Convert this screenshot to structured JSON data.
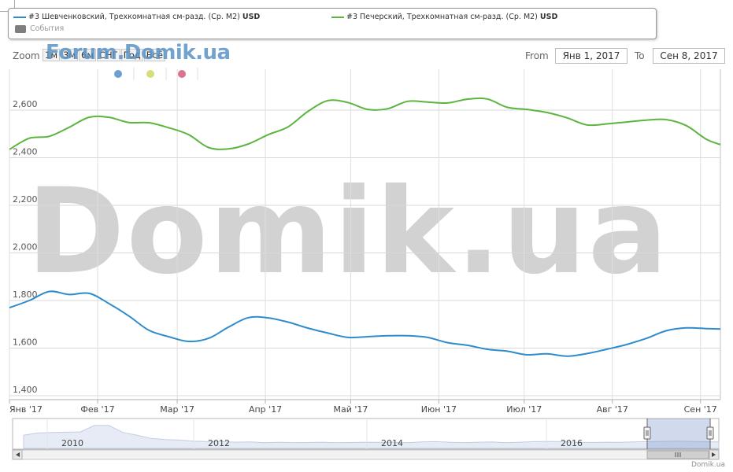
{
  "legend": {
    "series1": "#3 Шевченковский, Трехкомнатная см-разд. (Ср. М2)",
    "series2": "#3 Печерский, Трехкомнатная см-разд. (Ср. М2)",
    "currency": "USD",
    "events": "События"
  },
  "toolbar": {
    "zoom_label": "Zoom",
    "zoom_buttons": [
      "1м",
      "3м",
      "6м",
      "СНГ",
      "Год",
      "Всё"
    ],
    "from_label": "From",
    "from_value": "Янв 1, 2017",
    "to_label": "To",
    "to_value": "Сен 8, 2017"
  },
  "watermarks": {
    "small": "Forum.Domik.ua",
    "big": "Domik.ua"
  },
  "credit": "Domik.ua",
  "colors": {
    "series1": "#2e8bcc",
    "series2": "#5cb53e",
    "event_dots": [
      "#6d9fd0",
      "#d6dd7a",
      "#d9738f"
    ],
    "navigator_fill": "#e6ebf5"
  },
  "chart_data": {
    "type": "line",
    "x_unit": "date",
    "xlim": [
      "2017-01-01",
      "2017-09-08"
    ],
    "ylim": [
      1400,
      2600
    ],
    "yticks": [
      1400,
      1600,
      1800,
      2000,
      2200,
      2400,
      2600
    ],
    "ytick_labels": [
      "1,400",
      "1,600",
      "1,800",
      "2,000",
      "2,200",
      "2,400",
      "2,600"
    ],
    "xticks": [
      {
        "date": "2017-01-01",
        "label": "Янв '17"
      },
      {
        "date": "2017-02-01",
        "label": "Фев '17"
      },
      {
        "date": "2017-03-01",
        "label": "Мар '17"
      },
      {
        "date": "2017-04-01",
        "label": "Апр '17"
      },
      {
        "date": "2017-05-01",
        "label": "Май '17"
      },
      {
        "date": "2017-06-01",
        "label": "Июн '17"
      },
      {
        "date": "2017-07-01",
        "label": "Июл '17"
      },
      {
        "date": "2017-08-01",
        "label": "Авг '17"
      },
      {
        "date": "2017-09-01",
        "label": "Сен '17"
      }
    ],
    "grid": true,
    "series": [
      {
        "name": "#3 Печерский, Трехкомнатная см-разд. (Ср. М2)",
        "color": "#5cb53e",
        "points": [
          [
            "2017-01-01",
            2435
          ],
          [
            "2017-01-08",
            2482
          ],
          [
            "2017-01-15",
            2490
          ],
          [
            "2017-01-22",
            2528
          ],
          [
            "2017-01-29",
            2570
          ],
          [
            "2017-02-05",
            2570
          ],
          [
            "2017-02-12",
            2548
          ],
          [
            "2017-02-19",
            2547
          ],
          [
            "2017-02-26",
            2526
          ],
          [
            "2017-03-05",
            2497
          ],
          [
            "2017-03-12",
            2443
          ],
          [
            "2017-03-19",
            2437
          ],
          [
            "2017-03-26",
            2458
          ],
          [
            "2017-04-02",
            2497
          ],
          [
            "2017-04-09",
            2530
          ],
          [
            "2017-04-16",
            2595
          ],
          [
            "2017-04-23",
            2640
          ],
          [
            "2017-04-30",
            2632
          ],
          [
            "2017-05-07",
            2603
          ],
          [
            "2017-05-14",
            2606
          ],
          [
            "2017-05-21",
            2637
          ],
          [
            "2017-05-28",
            2634
          ],
          [
            "2017-06-04",
            2630
          ],
          [
            "2017-06-11",
            2646
          ],
          [
            "2017-06-18",
            2647
          ],
          [
            "2017-06-25",
            2612
          ],
          [
            "2017-07-02",
            2603
          ],
          [
            "2017-07-09",
            2590
          ],
          [
            "2017-07-16",
            2568
          ],
          [
            "2017-07-23",
            2538
          ],
          [
            "2017-07-30",
            2542
          ],
          [
            "2017-08-06",
            2550
          ],
          [
            "2017-08-13",
            2558
          ],
          [
            "2017-08-20",
            2560
          ],
          [
            "2017-08-27",
            2535
          ],
          [
            "2017-09-03",
            2478
          ],
          [
            "2017-09-08",
            2455
          ]
        ]
      },
      {
        "name": "#3 Шевченковский, Трехкомнатная см-разд. (Ср. М2)",
        "color": "#2e8bcc",
        "points": [
          [
            "2017-01-01",
            1770
          ],
          [
            "2017-01-08",
            1800
          ],
          [
            "2017-01-15",
            1838
          ],
          [
            "2017-01-22",
            1825
          ],
          [
            "2017-01-29",
            1830
          ],
          [
            "2017-02-05",
            1787
          ],
          [
            "2017-02-12",
            1735
          ],
          [
            "2017-02-19",
            1675
          ],
          [
            "2017-02-26",
            1648
          ],
          [
            "2017-03-05",
            1628
          ],
          [
            "2017-03-12",
            1641
          ],
          [
            "2017-03-19",
            1688
          ],
          [
            "2017-03-26",
            1728
          ],
          [
            "2017-04-02",
            1727
          ],
          [
            "2017-04-09",
            1709
          ],
          [
            "2017-04-16",
            1684
          ],
          [
            "2017-04-23",
            1663
          ],
          [
            "2017-04-30",
            1645
          ],
          [
            "2017-05-07",
            1648
          ],
          [
            "2017-05-14",
            1652
          ],
          [
            "2017-05-21",
            1652
          ],
          [
            "2017-05-28",
            1645
          ],
          [
            "2017-06-04",
            1623
          ],
          [
            "2017-06-11",
            1612
          ],
          [
            "2017-06-18",
            1595
          ],
          [
            "2017-06-25",
            1587
          ],
          [
            "2017-07-02",
            1572
          ],
          [
            "2017-07-09",
            1576
          ],
          [
            "2017-07-16",
            1566
          ],
          [
            "2017-07-23",
            1577
          ],
          [
            "2017-07-30",
            1595
          ],
          [
            "2017-08-06",
            1615
          ],
          [
            "2017-08-13",
            1641
          ],
          [
            "2017-08-20",
            1673
          ],
          [
            "2017-08-27",
            1685
          ],
          [
            "2017-09-03",
            1682
          ],
          [
            "2017-09-08",
            1680
          ]
        ]
      }
    ]
  },
  "navigator": {
    "year_labels": [
      "2010",
      "2012",
      "2014",
      "2016"
    ],
    "values": [
      1780,
      1820,
      1830,
      1835,
      1840,
      1960,
      1960,
      1830,
      1780,
      1720,
      1700,
      1690,
      1670,
      1660,
      1660,
      1650,
      1655,
      1640,
      1650,
      1640,
      1645,
      1650,
      1640,
      1645,
      1650,
      1648,
      1650,
      1640,
      1655,
      1660,
      1650,
      1640,
      1650,
      1655,
      1640,
      1650,
      1660,
      1665,
      1660,
      1650,
      1645,
      1650,
      1648,
      1655,
      1660,
      1665,
      1670,
      1665,
      1660,
      1655
    ]
  }
}
